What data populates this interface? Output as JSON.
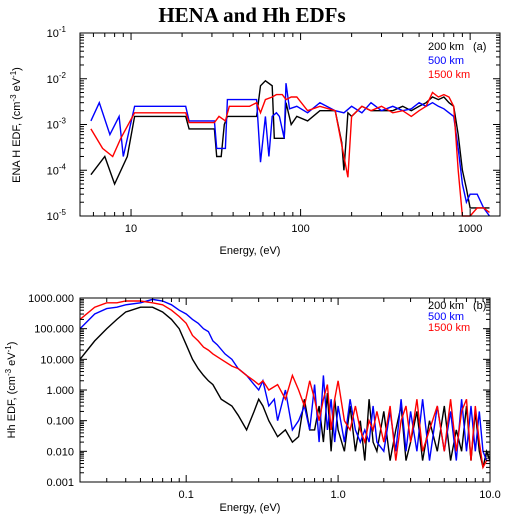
{
  "title": "HENA and Hh EDFs",
  "chart_data": [
    {
      "type": "line",
      "panel_label": "(a)",
      "xlabel": "Energy, (eV)",
      "ylabel": "ENA H EDF, (cm",
      "ylabel_sup1": "-3",
      "ylabel_mid": " eV",
      "ylabel_sup2": "-1",
      "ylabel_end": ")",
      "xscale": "log",
      "yscale": "log",
      "xlim": [
        5,
        1500
      ],
      "ylim": [
        1e-05,
        0.1
      ],
      "xticks": [
        {
          "value": 10,
          "label": "10"
        },
        {
          "value": 100,
          "label": "100"
        },
        {
          "value": 1000,
          "label": "1000"
        }
      ],
      "yticks": [
        {
          "value": 1e-05,
          "base": "10",
          "exp": "-5"
        },
        {
          "value": 0.0001,
          "base": "10",
          "exp": "-4"
        },
        {
          "value": 0.001,
          "base": "10",
          "exp": "-3"
        },
        {
          "value": 0.01,
          "base": "10",
          "exp": "-2"
        },
        {
          "value": 0.1,
          "base": "10",
          "exp": "-1"
        }
      ],
      "legend_position": "top-right",
      "series": [
        {
          "name": "200 km",
          "color": "#000000",
          "x": [
            5.8,
            7,
            8,
            9.5,
            10.5,
            21,
            22,
            31,
            32,
            34,
            35.5,
            37,
            55,
            58,
            62,
            68,
            70,
            80,
            82,
            88,
            95,
            110,
            130,
            160,
            175,
            180,
            185,
            190,
            200,
            230,
            260,
            300,
            350,
            400,
            450,
            500,
            550,
            600,
            650,
            700,
            750,
            800,
            850,
            900,
            950,
            1000,
            1100,
            1200,
            1300
          ],
          "y": [
            8e-05,
            0.0002,
            5e-05,
            0.0002,
            0.0015,
            0.0015,
            0.0008,
            0.0008,
            0.0002,
            0.0002,
            0.001,
            0.0015,
            0.0015,
            0.007,
            0.009,
            0.007,
            0.0005,
            0.0005,
            0.003,
            0.001,
            0.0015,
            0.0012,
            0.002,
            0.002,
            0.0004,
            0.0001,
            0.0004,
            0.0018,
            0.0015,
            0.0025,
            0.002,
            0.002,
            0.002,
            0.0025,
            0.002,
            0.0025,
            0.003,
            0.004,
            0.0035,
            0.004,
            0.003,
            0.0025,
            0.0006,
            0.0001,
            4e-05,
            1.5e-05,
            1.5e-05,
            1.5e-05,
            1.5e-05
          ]
        },
        {
          "name": "500 km",
          "color": "#0000ff",
          "x": [
            5.8,
            6.5,
            7.5,
            8.5,
            9,
            10.5,
            21,
            22,
            31,
            32,
            36,
            37,
            55,
            58,
            62,
            65,
            68,
            72,
            75,
            80,
            82,
            86,
            95,
            110,
            130,
            160,
            180,
            200,
            230,
            260,
            300,
            350,
            400,
            450,
            500,
            550,
            600,
            650,
            700,
            750,
            800,
            850,
            900,
            950,
            1000,
            1100,
            1200,
            1300
          ],
          "y": [
            0.0012,
            0.003,
            0.0006,
            0.0015,
            0.0002,
            0.0025,
            0.0025,
            0.0012,
            0.0012,
            0.0003,
            0.0003,
            0.0035,
            0.0035,
            0.00015,
            0.0015,
            0.0002,
            0.0015,
            0.0018,
            0.0015,
            0.0005,
            0.008,
            0.0022,
            0.0025,
            0.0018,
            0.003,
            0.002,
            0.0018,
            0.0025,
            0.0018,
            0.003,
            0.002,
            0.0025,
            0.002,
            0.0022,
            0.003,
            0.0025,
            0.003,
            0.0025,
            0.0022,
            0.0018,
            0.0015,
            0.0003,
            5e-05,
            2e-05,
            3e-05,
            3e-05,
            1.5e-05,
            1e-05
          ]
        },
        {
          "name": "1500 km",
          "color": "#ff0000",
          "x": [
            5.8,
            6.8,
            7.8,
            8.7,
            10.5,
            21,
            22,
            31,
            33,
            36,
            38,
            50,
            55,
            58,
            62,
            68,
            72,
            78,
            82,
            88,
            95,
            110,
            130,
            160,
            190,
            200,
            230,
            260,
            300,
            350,
            400,
            450,
            500,
            550,
            600,
            650,
            700,
            750,
            800,
            850,
            900,
            950,
            1000,
            1100,
            1200,
            1300
          ],
          "y": [
            0.0008,
            0.0003,
            0.0002,
            0.0005,
            0.0018,
            0.0018,
            0.0011,
            0.0011,
            0.0015,
            0.0012,
            0.0025,
            0.0025,
            0.003,
            0.0018,
            0.0035,
            0.004,
            0.0045,
            0.0045,
            0.0035,
            0.004,
            0.004,
            0.002,
            0.0025,
            0.002,
            7e-05,
            0.0015,
            0.0025,
            0.002,
            0.0025,
            0.0018,
            0.002,
            0.0015,
            0.002,
            0.0025,
            0.005,
            0.004,
            0.0045,
            0.004,
            0.0025,
            0.0001,
            1e-05,
            8e-06,
            1e-05,
            1.5e-05,
            1.5e-05,
            1.2e-05
          ]
        }
      ]
    },
    {
      "type": "line",
      "panel_label": "(b)",
      "xlabel": "Energy, (eV)",
      "ylabel": "Hh EDF, (cm",
      "ylabel_sup1": "-3",
      "ylabel_mid": " eV",
      "ylabel_sup2": "-1",
      "ylabel_end": ")",
      "xscale": "log",
      "yscale": "log",
      "xlim": [
        0.02,
        10
      ],
      "ylim": [
        0.001,
        1000
      ],
      "xticks": [
        {
          "value": 0.1,
          "label": "0.1"
        },
        {
          "value": 1,
          "label": "1.0"
        },
        {
          "value": 10,
          "label": "10.0"
        }
      ],
      "yticks": [
        {
          "value": 0.001,
          "label": "0.001"
        },
        {
          "value": 0.01,
          "label": "0.010"
        },
        {
          "value": 0.1,
          "label": "0.100"
        },
        {
          "value": 1,
          "label": "1.000"
        },
        {
          "value": 10,
          "label": "10.000"
        },
        {
          "value": 100,
          "label": "100.000"
        },
        {
          "value": 1000,
          "label": "1000.000"
        }
      ],
      "legend_position": "top-right",
      "series": [
        {
          "name": "200 km",
          "color": "#000000",
          "x": [
            0.02,
            0.025,
            0.03,
            0.035,
            0.04,
            0.05,
            0.06,
            0.07,
            0.08,
            0.09,
            0.1,
            0.11,
            0.12,
            0.13,
            0.14,
            0.15,
            0.17,
            0.2,
            0.22,
            0.25,
            0.28,
            0.3,
            0.32,
            0.35,
            0.4,
            0.45,
            0.5,
            0.55,
            0.6,
            0.65,
            0.7,
            0.75,
            0.8,
            0.85,
            0.9,
            0.95,
            1.0,
            1.1,
            1.2,
            1.3,
            1.4,
            1.5,
            1.6,
            1.7,
            1.8,
            2.0,
            2.2,
            2.4,
            2.6,
            2.8,
            3.0,
            3.3,
            3.6,
            4.0,
            4.5,
            5.0,
            5.5,
            6.0,
            6.5,
            7.0,
            7.5,
            8.0,
            8.5,
            9.0,
            9.5,
            10.0
          ],
          "y": [
            10,
            40,
            100,
            200,
            350,
            500,
            500,
            350,
            200,
            100,
            30,
            10,
            5,
            3,
            2,
            1.5,
            0.5,
            0.3,
            0.15,
            0.05,
            0.2,
            0.5,
            0.3,
            0.1,
            0.03,
            0.05,
            0.02,
            0.03,
            0.5,
            0.05,
            0.05,
            0.3,
            0.02,
            0.8,
            0.01,
            0.5,
            0.05,
            0.01,
            0.3,
            0.01,
            0.1,
            0.005,
            0.5,
            0.02,
            0.01,
            0.2,
            0.005,
            0.05,
            0.3,
            0.005,
            0.02,
            0.2,
            0.005,
            0.1,
            0.01,
            0.3,
            0.005,
            0.05,
            0.01,
            0.3,
            0.005,
            0.2,
            0.01,
            0.003,
            0.01,
            0.005
          ]
        },
        {
          "name": "500 km",
          "color": "#0000ff",
          "x": [
            0.02,
            0.025,
            0.03,
            0.035,
            0.04,
            0.05,
            0.06,
            0.07,
            0.08,
            0.09,
            0.1,
            0.11,
            0.12,
            0.13,
            0.14,
            0.15,
            0.16,
            0.18,
            0.2,
            0.22,
            0.25,
            0.28,
            0.3,
            0.32,
            0.35,
            0.38,
            0.4,
            0.45,
            0.5,
            0.55,
            0.6,
            0.65,
            0.7,
            0.75,
            0.8,
            0.85,
            0.9,
            0.95,
            1.0,
            1.1,
            1.2,
            1.3,
            1.4,
            1.5,
            1.6,
            1.7,
            1.8,
            2.0,
            2.2,
            2.4,
            2.6,
            2.8,
            3.0,
            3.3,
            3.6,
            4.0,
            4.5,
            5.0,
            5.5,
            6.0,
            6.5,
            7.0,
            7.5,
            8.0,
            8.5,
            9.0,
            9.5,
            10.0
          ],
          "y": [
            100,
            300,
            450,
            500,
            600,
            700,
            900,
            800,
            600,
            400,
            300,
            200,
            150,
            100,
            80,
            40,
            30,
            15,
            10,
            5,
            3,
            1.5,
            1,
            2,
            0.3,
            0.5,
            0.1,
            1,
            0.05,
            0.1,
            0.3,
            0.05,
            1.5,
            0.02,
            3,
            0.05,
            0.5,
            0.02,
            0.3,
            0.02,
            0.5,
            0.05,
            0.02,
            0.05,
            0.02,
            0.3,
            0.02,
            0.01,
            0.2,
            0.01,
            0.5,
            0.01,
            0.2,
            0.01,
            0.5,
            0.005,
            0.3,
            0.01,
            0.2,
            0.005,
            0.5,
            0.01,
            0.3,
            0.01,
            0.2,
            0.01,
            0.005,
            0.005
          ]
        },
        {
          "name": "1500 km",
          "color": "#ff0000",
          "x": [
            0.02,
            0.025,
            0.03,
            0.035,
            0.04,
            0.05,
            0.06,
            0.07,
            0.08,
            0.09,
            0.1,
            0.11,
            0.12,
            0.13,
            0.14,
            0.15,
            0.17,
            0.2,
            0.22,
            0.25,
            0.28,
            0.3,
            0.32,
            0.35,
            0.4,
            0.45,
            0.5,
            0.55,
            0.6,
            0.65,
            0.7,
            0.75,
            0.8,
            0.85,
            0.9,
            0.95,
            1.0,
            1.1,
            1.2,
            1.3,
            1.4,
            1.5,
            1.6,
            1.7,
            1.8,
            2.0,
            2.2,
            2.4,
            2.6,
            2.8,
            3.0,
            3.3,
            3.6,
            4.0,
            4.5,
            5.0,
            5.5,
            6.0,
            6.5,
            7.0,
            7.5,
            8.0,
            8.5,
            9.0,
            9.5,
            10.0
          ],
          "y": [
            200,
            500,
            700,
            700,
            800,
            800,
            700,
            600,
            400,
            250,
            150,
            60,
            40,
            25,
            20,
            15,
            10,
            6,
            5,
            3,
            2,
            1.5,
            2,
            1,
            1.5,
            0.5,
            3,
            1,
            0.3,
            2,
            0.5,
            0.1,
            0.5,
            1.5,
            0.05,
            0.5,
            2,
            0.1,
            0.05,
            0.3,
            0.05,
            0.02,
            0.1,
            0.05,
            0.2,
            0.02,
            0.3,
            0.005,
            0.1,
            0.3,
            0.02,
            0.5,
            0.01,
            0.05,
            0.3,
            0.01,
            0.5,
            0.01,
            0.2,
            0.5,
            0.005,
            0.3,
            0.02,
            0.003,
            0.005,
            0.005
          ]
        }
      ]
    }
  ]
}
